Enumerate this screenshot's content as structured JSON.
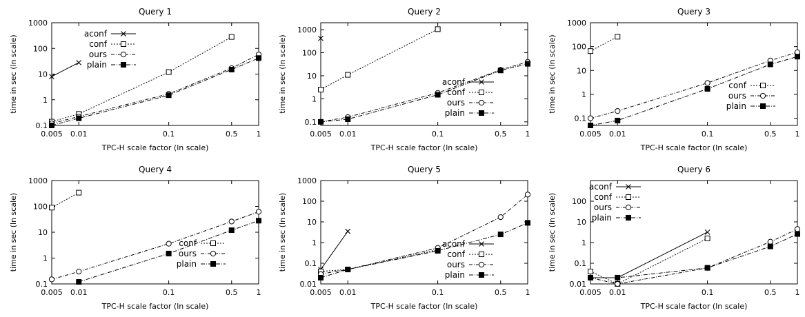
{
  "chart_data": [
    {
      "type": "line",
      "title": "Query 1",
      "xlabel": "TPC-H scale factor (ln scale)",
      "ylabel": "time in sec (ln scale)",
      "xscale": "log",
      "yscale": "log",
      "xlim": [
        0.005,
        1
      ],
      "ylim": [
        0.1,
        1000
      ],
      "xticks": [
        0.005,
        0.01,
        0.1,
        0.5,
        1
      ],
      "xtick_labels": [
        "0.005",
        "0.01",
        "0.1",
        "0.5",
        "1"
      ],
      "yticks": [
        0.1,
        1,
        10,
        100,
        1000
      ],
      "ytick_labels": [
        "0.1",
        "1",
        "10",
        "100",
        "1000"
      ],
      "legend_position": "top-left",
      "series": [
        {
          "name": "aconf",
          "x": [
            0.005,
            0.01
          ],
          "y": [
            8,
            28
          ]
        },
        {
          "name": "conf",
          "x": [
            0.005,
            0.01,
            0.1,
            0.5
          ],
          "y": [
            0.14,
            0.28,
            12,
            280
          ]
        },
        {
          "name": "ours",
          "x": [
            0.005,
            0.01,
            0.1,
            0.5,
            1
          ],
          "y": [
            0.12,
            0.22,
            1.7,
            17,
            58
          ]
        },
        {
          "name": "plain",
          "x": [
            0.005,
            0.01,
            0.1,
            0.5,
            1
          ],
          "y": [
            0.1,
            0.19,
            1.5,
            15,
            42
          ]
        }
      ]
    },
    {
      "type": "line",
      "title": "Query 2",
      "xlabel": "TPC-H scale factor (ln scale)",
      "ylabel": "time in sec (ln scale)",
      "xscale": "log",
      "yscale": "log",
      "xlim": [
        0.005,
        1
      ],
      "ylim": [
        0.07,
        2000
      ],
      "xticks": [
        0.005,
        0.01,
        0.1,
        0.5,
        1
      ],
      "xtick_labels": [
        "0.005",
        "0.01",
        "0.1",
        "0.5",
        "1"
      ],
      "yticks": [
        0.1,
        1,
        10,
        100,
        1000
      ],
      "ytick_labels": [
        "0.1",
        "1",
        "10",
        "100",
        "1000"
      ],
      "legend_position": "bottom-right",
      "series": [
        {
          "name": "aconf",
          "x": [
            0.005
          ],
          "y": [
            420
          ]
        },
        {
          "name": "conf",
          "x": [
            0.005,
            0.01,
            0.1
          ],
          "y": [
            2.5,
            11,
            1050
          ]
        },
        {
          "name": "ours",
          "x": [
            0.005,
            0.01,
            0.1,
            0.5,
            1
          ],
          "y": [
            0.1,
            0.16,
            1.8,
            18,
            40
          ]
        },
        {
          "name": "plain",
          "x": [
            0.005,
            0.01,
            0.1,
            0.5,
            1
          ],
          "y": [
            0.1,
            0.13,
            1.5,
            17,
            33
          ]
        }
      ]
    },
    {
      "type": "line",
      "title": "Query 3",
      "xlabel": "TPC-H scale factor (ln scale)",
      "ylabel": "time in sec (ln scale)",
      "xscale": "log",
      "yscale": "log",
      "xlim": [
        0.005,
        1
      ],
      "ylim": [
        0.05,
        1000
      ],
      "xticks": [
        0.005,
        0.01,
        0.1,
        0.5,
        1
      ],
      "xtick_labels": [
        "0.005",
        "0.01",
        "0.1",
        "0.5",
        "1"
      ],
      "yticks": [
        0.1,
        1,
        10,
        100,
        1000
      ],
      "ytick_labels": [
        "0.1",
        "1",
        "10",
        "100",
        "1000"
      ],
      "legend_position": "bottom-right",
      "series": [
        {
          "name": "conf",
          "x": [
            0.005,
            0.01
          ],
          "y": [
            65,
            260
          ]
        },
        {
          "name": "ours",
          "x": [
            0.005,
            0.01,
            0.1,
            0.5,
            1
          ],
          "y": [
            0.1,
            0.2,
            3,
            26,
            58
          ]
        },
        {
          "name": "plain",
          "x": [
            0.005,
            0.01,
            0.1,
            0.5,
            1
          ],
          "y": [
            0.05,
            0.08,
            1.7,
            18,
            38
          ]
        }
      ]
    },
    {
      "type": "line",
      "title": "Query 4",
      "xlabel": "TPC-H scale factor (ln scale)",
      "ylabel": "time in sec (ln scale)",
      "xscale": "log",
      "yscale": "log",
      "xlim": [
        0.005,
        1
      ],
      "ylim": [
        0.1,
        1000
      ],
      "xticks": [
        0.005,
        0.01,
        0.1,
        0.5,
        1
      ],
      "xtick_labels": [
        "0.005",
        "0.01",
        "0.1",
        "0.5",
        "1"
      ],
      "yticks": [
        0.1,
        1,
        10,
        100,
        1000
      ],
      "ytick_labels": [
        "0.1",
        "1",
        "10",
        "100",
        "1000"
      ],
      "legend_position": "bottom-right",
      "series": [
        {
          "name": "conf",
          "x": [
            0.005,
            0.01
          ],
          "y": [
            90,
            340
          ]
        },
        {
          "name": "ours",
          "x": [
            0.005,
            0.01,
            0.1,
            0.5,
            1
          ],
          "y": [
            0.15,
            0.3,
            3.6,
            26,
            62
          ]
        },
        {
          "name": "plain",
          "x": [
            0.01,
            0.1,
            0.5,
            1
          ],
          "y": [
            0.12,
            1.5,
            12,
            28
          ]
        }
      ]
    },
    {
      "type": "line",
      "title": "Query 5",
      "xlabel": "TPC-H scale factor (ln scale)",
      "ylabel": "time in sec (ln scale)",
      "xscale": "log",
      "yscale": "log",
      "xlim": [
        0.005,
        1
      ],
      "ylim": [
        0.01,
        1000
      ],
      "xticks": [
        0.005,
        0.01,
        0.1,
        0.5,
        1
      ],
      "xtick_labels": [
        "0.005",
        "0.01",
        "0.1",
        "0.5",
        "1"
      ],
      "yticks": [
        0.01,
        0.1,
        1,
        10,
        100,
        1000
      ],
      "ytick_labels": [
        "0.01",
        "0.1",
        "1",
        "10",
        "100",
        "1000"
      ],
      "legend_position": "bottom-right",
      "series": [
        {
          "name": "aconf",
          "x": [
            0.005,
            0.01
          ],
          "y": [
            0.05,
            3.5
          ]
        },
        {
          "name": "conf",
          "x": [
            0.005,
            0.01,
            0.1
          ],
          "y": [
            0.04,
            0.05,
            0.45
          ]
        },
        {
          "name": "ours",
          "x": [
            0.005,
            0.01,
            0.1,
            0.5,
            1
          ],
          "y": [
            0.03,
            0.05,
            0.55,
            17,
            210
          ]
        },
        {
          "name": "plain",
          "x": [
            0.005,
            0.01,
            0.1,
            0.5,
            1
          ],
          "y": [
            0.02,
            0.05,
            0.4,
            2.5,
            9
          ]
        }
      ]
    },
    {
      "type": "line",
      "title": "Query 6",
      "xlabel": "TPC-H scale factor (ln scale)",
      "ylabel": "time in sec (ln scale)",
      "xscale": "log",
      "yscale": "log",
      "xlim": [
        0.005,
        1
      ],
      "ylim": [
        0.01,
        1000
      ],
      "xticks": [
        0.005,
        0.01,
        0.1,
        0.5,
        1
      ],
      "xtick_labels": [
        "0.005",
        "0.01",
        "0.1",
        "0.5",
        "1"
      ],
      "yticks": [
        0.01,
        0.1,
        1,
        10,
        100
      ],
      "ytick_labels": [
        "0.01",
        "0.1",
        "1",
        "10",
        "100"
      ],
      "legend_position": "top-left",
      "series": [
        {
          "name": "aconf",
          "x": [
            0.005,
            0.01,
            0.1
          ],
          "y": [
            0.02,
            0.02,
            3.2
          ]
        },
        {
          "name": "conf",
          "x": [
            0.005,
            0.01,
            0.1
          ],
          "y": [
            0.04,
            0.01,
            1.6
          ]
        },
        {
          "name": "ours",
          "x": [
            0.005,
            0.01,
            0.1,
            0.5,
            1
          ],
          "y": [
            0.02,
            0.01,
            0.06,
            1.1,
            4.5
          ]
        },
        {
          "name": "plain",
          "x": [
            0.005,
            0.01,
            0.1,
            0.5,
            1
          ],
          "y": [
            0.02,
            0.02,
            0.06,
            0.65,
            2.6
          ]
        }
      ]
    }
  ]
}
